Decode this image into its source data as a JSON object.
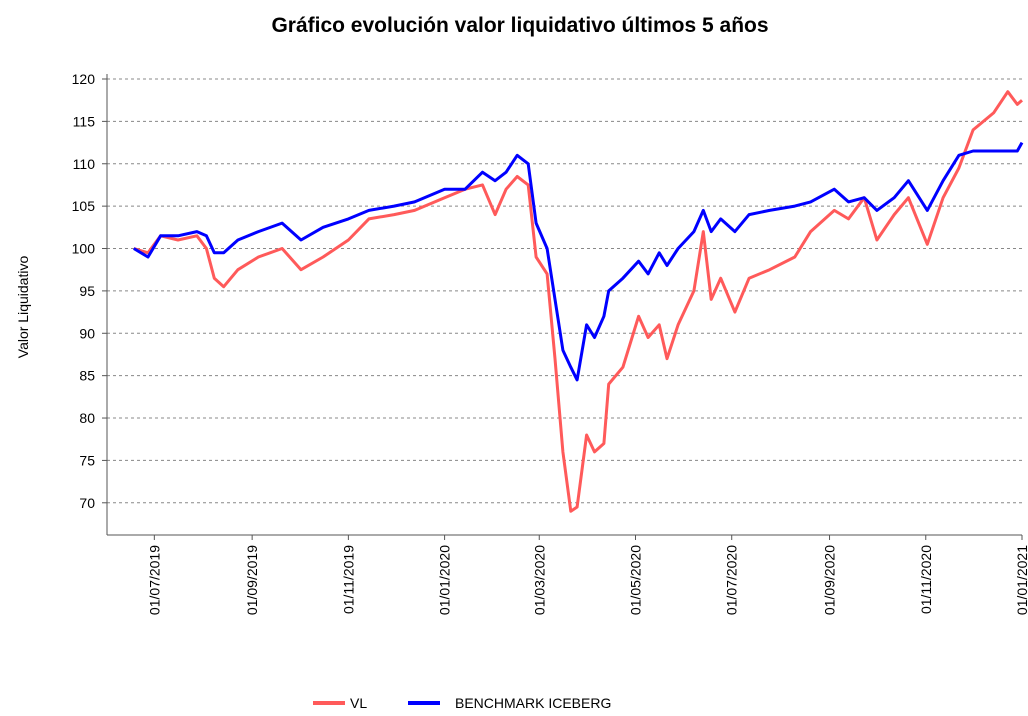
{
  "chart_data": {
    "type": "line",
    "title": "Gráfico evolución valor liquidativo últimos 5 años",
    "y_label": "Valor Liquidativo",
    "x": [
      "2019-06-18",
      "2019-06-27",
      "2019-07-05",
      "2019-07-16",
      "2019-07-28",
      "2019-08-03",
      "2019-08-08",
      "2019-08-14",
      "2019-08-23",
      "2019-09-05",
      "2019-09-20",
      "2019-10-02",
      "2019-10-16",
      "2019-11-01",
      "2019-11-14",
      "2019-11-30",
      "2019-12-13",
      "2020-01-01",
      "2020-01-14",
      "2020-01-25",
      "2020-02-02",
      "2020-02-09",
      "2020-02-16",
      "2020-02-23",
      "2020-02-28",
      "2020-03-06",
      "2020-03-11",
      "2020-03-16",
      "2020-03-21",
      "2020-03-25",
      "2020-03-31",
      "2020-04-05",
      "2020-04-11",
      "2020-04-14",
      "2020-04-23",
      "2020-05-03",
      "2020-05-09",
      "2020-05-16",
      "2020-05-21",
      "2020-05-28",
      "2020-06-07",
      "2020-06-13",
      "2020-06-18",
      "2020-06-24",
      "2020-07-03",
      "2020-07-12",
      "2020-07-25",
      "2020-08-10",
      "2020-08-20",
      "2020-09-04",
      "2020-09-13",
      "2020-09-23",
      "2020-10-01",
      "2020-10-12",
      "2020-10-21",
      "2020-11-02",
      "2020-11-12",
      "2020-11-22",
      "2020-12-01",
      "2020-12-14",
      "2020-12-23",
      "2020-12-29",
      "2021-01-01"
    ],
    "series": [
      {
        "name": "VL",
        "color": "#ff5a5a",
        "values": [
          100,
          99.5,
          101.5,
          101,
          101.5,
          100,
          96.5,
          95.5,
          97.5,
          99,
          100,
          97.5,
          99,
          101,
          103.5,
          104,
          104.5,
          106,
          107,
          107.5,
          104,
          107,
          108.5,
          107.5,
          99,
          97,
          87,
          76,
          69,
          69.5,
          78,
          76,
          77,
          84,
          86,
          92,
          89.5,
          91,
          87,
          91,
          95,
          102,
          94,
          96.5,
          92.5,
          96.5,
          97.5,
          99,
          102,
          104.5,
          103.5,
          106,
          101,
          104,
          106,
          100.5,
          106,
          109.5,
          114,
          116,
          118.5,
          117,
          117.5
        ]
      },
      {
        "name": "BENCHMARK ICEBERG",
        "color": "#0000ff",
        "values": [
          100,
          99,
          101.5,
          101.5,
          102,
          101.5,
          99.5,
          99.5,
          101,
          102,
          103,
          101,
          102.5,
          103.5,
          104.5,
          105,
          105.5,
          107,
          107,
          109,
          108,
          109,
          111,
          110,
          103,
          100,
          94,
          88,
          86,
          84.5,
          91,
          89.5,
          92,
          95,
          96.5,
          98.5,
          97,
          99.5,
          98,
          100,
          102,
          104.5,
          102,
          103.5,
          102,
          104,
          104.5,
          105,
          105.5,
          107,
          105.5,
          106,
          104.5,
          106,
          108,
          104.5,
          108,
          111,
          111.5,
          111.5,
          111.5,
          111.5,
          112.5
        ]
      }
    ],
    "xlim": [
      "2019-06-01",
      "2021-01-01"
    ],
    "xticks": [
      {
        "value": "2019-07-01",
        "label": "01/07/2019"
      },
      {
        "value": "2019-09-01",
        "label": "01/09/2019"
      },
      {
        "value": "2019-11-01",
        "label": "01/11/2019"
      },
      {
        "value": "2020-01-01",
        "label": "01/01/2020"
      },
      {
        "value": "2020-03-01",
        "label": "01/03/2020"
      },
      {
        "value": "2020-05-01",
        "label": "01/05/2020"
      },
      {
        "value": "2020-07-01",
        "label": "01/07/2020"
      },
      {
        "value": "2020-09-01",
        "label": "01/09/2020"
      },
      {
        "value": "2020-11-01",
        "label": "01/11/2020"
      },
      {
        "value": "2021-01-01",
        "label": "01/01/2021"
      }
    ],
    "ylim": [
      66.2,
      120
    ],
    "yticks": [
      70,
      75,
      80,
      85,
      90,
      95,
      100,
      105,
      110,
      115,
      120
    ],
    "grid": true,
    "legend": "bottom"
  }
}
